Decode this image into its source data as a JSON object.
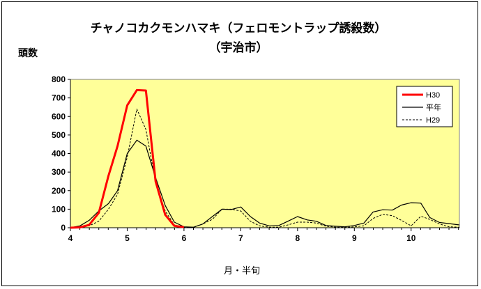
{
  "chart_data": {
    "type": "line",
    "title": "チャノコカクモンハマキ（フェロモントラップ誘殺数）",
    "subtitle": "（宇治市）",
    "ylabel": "頭数",
    "xlabel": "月・半旬",
    "ylim": [
      0,
      800
    ],
    "yticks": [
      0,
      100,
      200,
      300,
      400,
      500,
      600,
      700,
      800
    ],
    "xlim": [
      4,
      10.85
    ],
    "xticks": [
      4,
      5,
      6,
      7,
      8,
      9,
      10
    ],
    "grid": false,
    "legend_position": "top-right",
    "background": "#ffff99",
    "series": [
      {
        "name": "H30",
        "color": "#ff0000",
        "style": "solid-thick",
        "points": [
          [
            4.0,
            0
          ],
          [
            4.17,
            2
          ],
          [
            4.33,
            15
          ],
          [
            4.5,
            80
          ],
          [
            4.67,
            280
          ],
          [
            4.83,
            440
          ],
          [
            5.0,
            660
          ],
          [
            5.17,
            742
          ],
          [
            5.33,
            740
          ],
          [
            5.5,
            250
          ],
          [
            5.67,
            70
          ],
          [
            5.83,
            10
          ],
          [
            6.0,
            3
          ]
        ]
      },
      {
        "name": "平年",
        "color": "#000000",
        "style": "solid",
        "points": [
          [
            4.0,
            0
          ],
          [
            4.17,
            10
          ],
          [
            4.33,
            40
          ],
          [
            4.5,
            90
          ],
          [
            4.67,
            130
          ],
          [
            4.83,
            200
          ],
          [
            5.0,
            400
          ],
          [
            5.17,
            472
          ],
          [
            5.33,
            440
          ],
          [
            5.5,
            270
          ],
          [
            5.67,
            120
          ],
          [
            5.83,
            30
          ],
          [
            6.0,
            5
          ],
          [
            6.17,
            3
          ],
          [
            6.33,
            20
          ],
          [
            6.5,
            60
          ],
          [
            6.67,
            100
          ],
          [
            6.83,
            98
          ],
          [
            7.0,
            112
          ],
          [
            7.17,
            60
          ],
          [
            7.33,
            25
          ],
          [
            7.5,
            10
          ],
          [
            7.67,
            12
          ],
          [
            7.83,
            35
          ],
          [
            8.0,
            60
          ],
          [
            8.17,
            42
          ],
          [
            8.33,
            35
          ],
          [
            8.5,
            12
          ],
          [
            8.67,
            8
          ],
          [
            8.83,
            5
          ],
          [
            9.0,
            12
          ],
          [
            9.17,
            25
          ],
          [
            9.33,
            85
          ],
          [
            9.5,
            97
          ],
          [
            9.67,
            95
          ],
          [
            9.83,
            122
          ],
          [
            10.0,
            135
          ],
          [
            10.17,
            133
          ],
          [
            10.33,
            55
          ],
          [
            10.5,
            28
          ],
          [
            10.67,
            22
          ],
          [
            10.85,
            15
          ]
        ]
      },
      {
        "name": "H29",
        "color": "#000000",
        "style": "dashed",
        "points": [
          [
            4.0,
            0
          ],
          [
            4.17,
            2
          ],
          [
            4.33,
            10
          ],
          [
            4.5,
            35
          ],
          [
            4.67,
            100
          ],
          [
            4.83,
            180
          ],
          [
            5.0,
            380
          ],
          [
            5.17,
            640
          ],
          [
            5.33,
            530
          ],
          [
            5.5,
            245
          ],
          [
            5.67,
            90
          ],
          [
            5.83,
            15
          ],
          [
            6.0,
            3
          ],
          [
            6.17,
            2
          ],
          [
            6.33,
            20
          ],
          [
            6.5,
            45
          ],
          [
            6.67,
            100
          ],
          [
            6.83,
            100
          ],
          [
            7.0,
            90
          ],
          [
            7.17,
            35
          ],
          [
            7.33,
            10
          ],
          [
            7.5,
            3
          ],
          [
            7.67,
            3
          ],
          [
            7.83,
            15
          ],
          [
            8.0,
            30
          ],
          [
            8.17,
            30
          ],
          [
            8.33,
            25
          ],
          [
            8.5,
            8
          ],
          [
            8.67,
            3
          ],
          [
            8.83,
            2
          ],
          [
            9.0,
            5
          ],
          [
            9.17,
            10
          ],
          [
            9.33,
            50
          ],
          [
            9.5,
            72
          ],
          [
            9.67,
            65
          ],
          [
            9.83,
            40
          ],
          [
            10.0,
            10
          ],
          [
            10.17,
            62
          ],
          [
            10.33,
            45
          ],
          [
            10.5,
            20
          ],
          [
            10.67,
            5
          ],
          [
            10.85,
            3
          ]
        ]
      }
    ]
  }
}
